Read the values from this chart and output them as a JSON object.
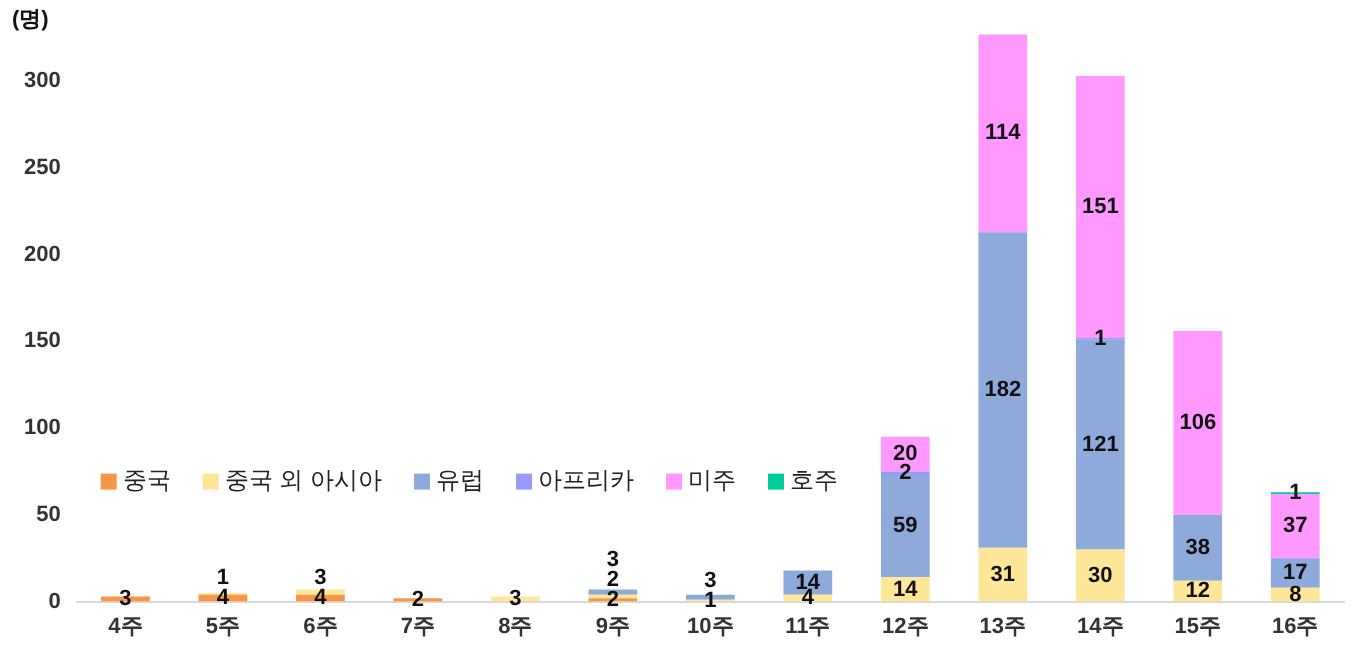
{
  "chart_data": {
    "type": "bar",
    "stacked": true,
    "ylabel": "(명)",
    "categories": [
      "4주",
      "5주",
      "6주",
      "7주",
      "8주",
      "9주",
      "10주",
      "11주",
      "12주",
      "13주",
      "14주",
      "15주",
      "16주"
    ],
    "series": [
      {
        "name": "중국",
        "color": "#f79646",
        "values": [
          3,
          4,
          4,
          2,
          null,
          2,
          null,
          null,
          null,
          null,
          null,
          null,
          null
        ]
      },
      {
        "name": "중국 외 아시아",
        "color": "#ffe699",
        "values": [
          null,
          1,
          3,
          null,
          3,
          2,
          1,
          4,
          14,
          31,
          30,
          12,
          8
        ]
      },
      {
        "name": "유럽",
        "color": "#8eaadb",
        "values": [
          null,
          null,
          null,
          null,
          null,
          3,
          3,
          14,
          59,
          182,
          121,
          38,
          17
        ]
      },
      {
        "name": "아프리카",
        "color": "#9999ff",
        "values": [
          null,
          null,
          null,
          null,
          null,
          null,
          null,
          null,
          2,
          null,
          1,
          null,
          null
        ]
      },
      {
        "name": "미주",
        "color": "#ff99ff",
        "values": [
          null,
          null,
          null,
          null,
          null,
          null,
          null,
          null,
          20,
          114,
          151,
          106,
          37
        ]
      },
      {
        "name": "호주",
        "color": "#00cc99",
        "values": [
          null,
          null,
          null,
          null,
          null,
          null,
          null,
          null,
          null,
          null,
          null,
          null,
          1
        ]
      }
    ],
    "ylim": [
      0,
      330
    ],
    "yticks": [
      0,
      50,
      100,
      150,
      200,
      250,
      300
    ],
    "grid": false,
    "legend": "bottom left",
    "data_labels": true
  }
}
